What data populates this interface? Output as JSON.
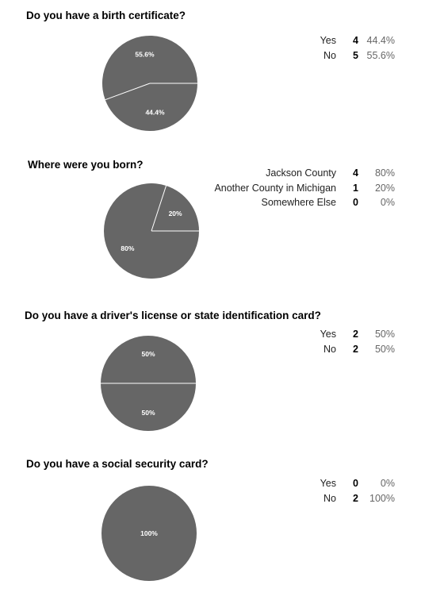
{
  "pie_color": "#666666",
  "divider_color": "#ffffff",
  "chart_data": [
    {
      "type": "pie",
      "title": "Do you have a birth certificate?",
      "slices": [
        {
          "label": "Yes",
          "count": 4,
          "percent_label": "44.4%",
          "value": 44.4
        },
        {
          "label": "No",
          "count": 5,
          "percent_label": "55.6%",
          "value": 55.6
        }
      ]
    },
    {
      "type": "pie",
      "title": "Where were you born?",
      "slices": [
        {
          "label": "Jackson County",
          "count": 4,
          "percent_label": "80%",
          "value": 80
        },
        {
          "label": "Another County in Michigan",
          "count": 1,
          "percent_label": "20%",
          "value": 20
        },
        {
          "label": "Somewhere Else",
          "count": 0,
          "percent_label": "0%",
          "value": 0
        }
      ]
    },
    {
      "type": "pie",
      "title": "Do you have a driver's license or state identification card?",
      "slices": [
        {
          "label": "Yes",
          "count": 2,
          "percent_label": "50%",
          "value": 50
        },
        {
          "label": "No",
          "count": 2,
          "percent_label": "50%",
          "value": 50
        }
      ]
    },
    {
      "type": "pie",
      "title": "Do you have a social security card?",
      "slices": [
        {
          "label": "Yes",
          "count": 0,
          "percent_label": "0%",
          "value": 0
        },
        {
          "label": "No",
          "count": 2,
          "percent_label": "100%",
          "value": 100
        }
      ]
    }
  ]
}
